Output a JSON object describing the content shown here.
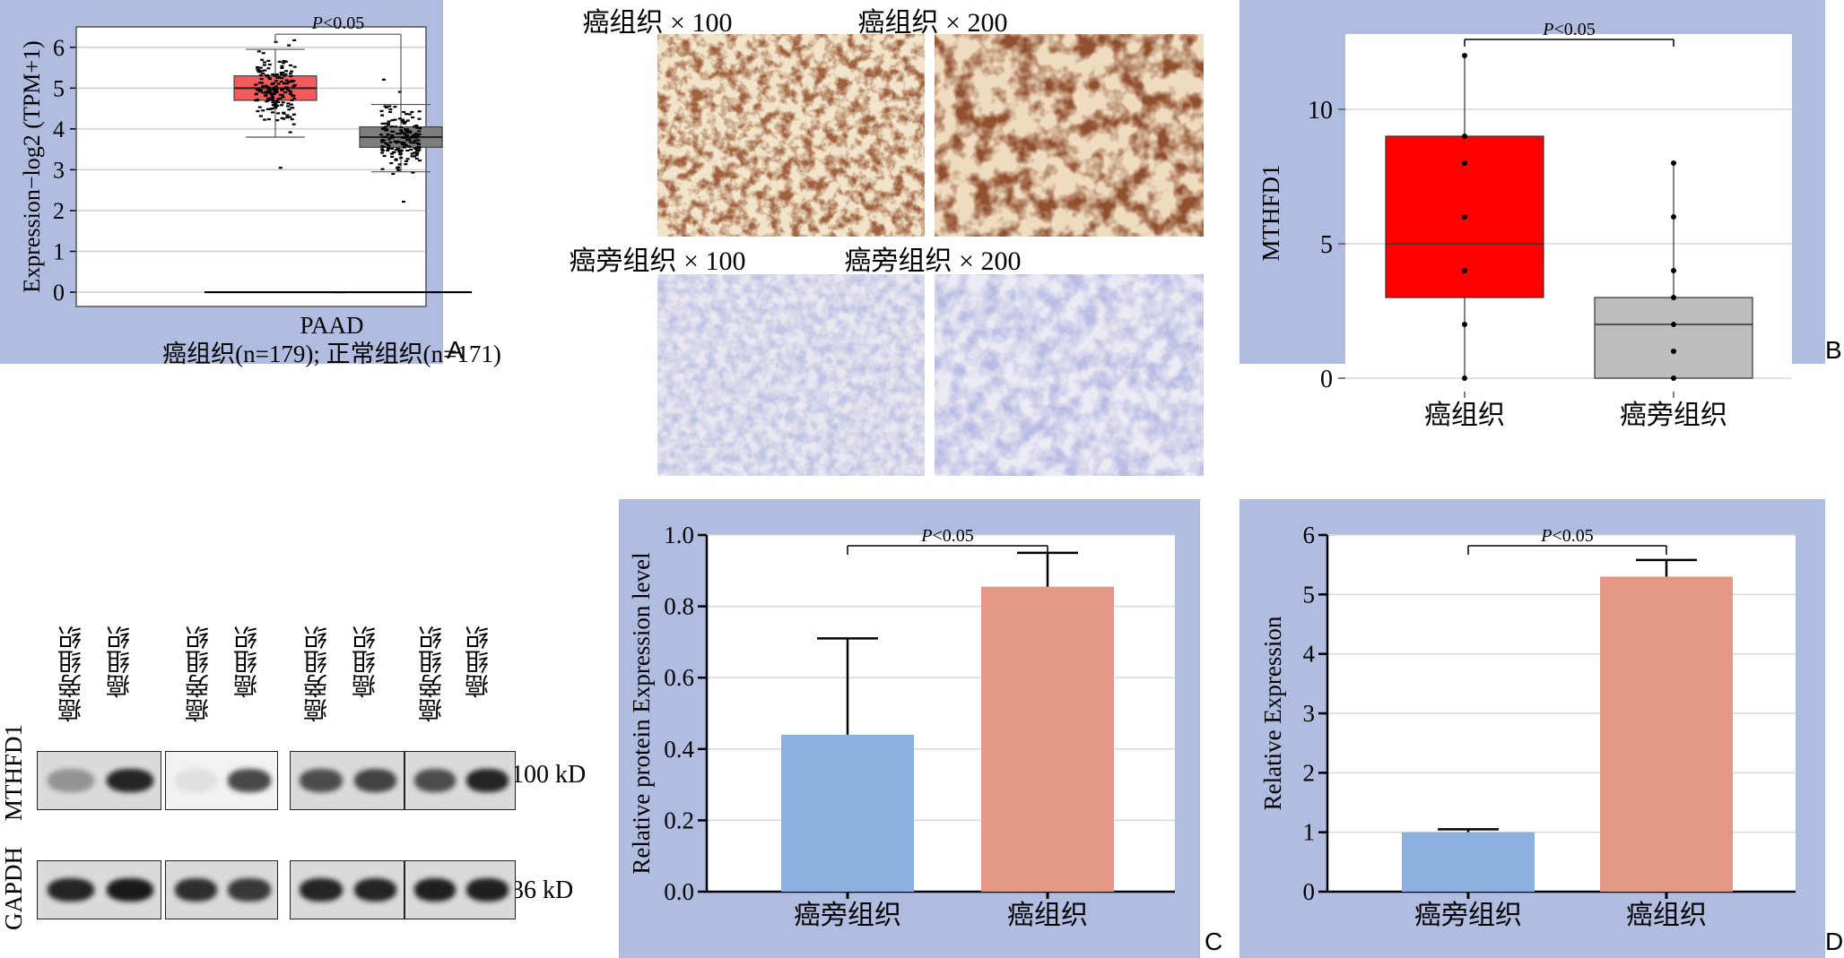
{
  "panel_letters": {
    "A": "A",
    "B": "B",
    "C": "C",
    "D": "D"
  },
  "ihc": {
    "labels": [
      "癌组织 × 100",
      "癌组织 × 200",
      "癌旁组织 × 100",
      "癌旁组织 × 200"
    ]
  },
  "western_blot": {
    "lanes": [
      "癌旁组织",
      "癌组织",
      "癌旁组织",
      "癌组织",
      "癌旁组织",
      "癌组织",
      "癌旁组织",
      "癌组织"
    ],
    "row_labels": [
      "MTHFD1",
      "GAPDH"
    ],
    "sizes": [
      "100 kD",
      "36 kD"
    ]
  },
  "chart_data": [
    {
      "id": "A",
      "type": "box",
      "ylabel": "Expression−log2 (TPM+1)",
      "ylim": [
        0,
        6.5
      ],
      "yticks": [
        0,
        1,
        2,
        3,
        4,
        5,
        6
      ],
      "xlabel": "PAAD",
      "caption": "癌组织(n=179); 正常组织(n=171)",
      "annotation": "P<0.05",
      "grid": true,
      "colors": [
        "#f25b5b",
        "#7d7d7d"
      ],
      "series": [
        {
          "min": 3.8,
          "q1": 4.7,
          "median": 5.0,
          "q3": 5.3,
          "max": 5.95
        },
        {
          "min": 2.95,
          "q1": 3.55,
          "median": 3.8,
          "q3": 4.05,
          "max": 4.6
        }
      ]
    },
    {
      "id": "B",
      "type": "box",
      "ylabel": "MTHFD1",
      "ylim": [
        -0.5,
        12.8
      ],
      "yticks": [
        0,
        5,
        10
      ],
      "categories": [
        "癌组织",
        "癌旁组织"
      ],
      "annotation": "P<0.05",
      "grid": true,
      "colors": [
        "#ff0000",
        "#bdbdbd"
      ],
      "series": [
        {
          "min": 0,
          "q1": 3,
          "median": 5,
          "q3": 9,
          "max": 12,
          "points": [
            0,
            2,
            4,
            6,
            8,
            9,
            12
          ]
        },
        {
          "min": 0,
          "q1": 0,
          "median": 2,
          "q3": 3,
          "max": 8,
          "points": [
            0,
            1,
            2,
            3,
            4,
            6,
            8
          ]
        }
      ]
    },
    {
      "id": "C",
      "type": "bar",
      "ylabel": "Relative protein Expression level",
      "ylim": [
        0,
        1.0
      ],
      "yticks": [
        "0.0",
        "0.2",
        "0.4",
        "0.6",
        "0.8",
        "1.0"
      ],
      "categories": [
        "癌旁组织",
        "癌组织"
      ],
      "values": [
        0.44,
        0.855
      ],
      "errors": [
        0.27,
        0.095
      ],
      "annotation": "P<0.05",
      "grid": true,
      "colors": [
        "#8cb0e0",
        "#e39785"
      ]
    },
    {
      "id": "D",
      "type": "bar",
      "ylabel": "Relative Expression",
      "ylim": [
        0,
        6
      ],
      "yticks": [
        "0",
        "1",
        "2",
        "3",
        "4",
        "5",
        "6"
      ],
      "categories": [
        "癌旁组织",
        "癌组织"
      ],
      "values": [
        1.0,
        5.3
      ],
      "errors": [
        0.05,
        0.28
      ],
      "annotation": "P<0.05",
      "grid": true,
      "colors": [
        "#8cb0e0",
        "#e39785"
      ]
    }
  ]
}
